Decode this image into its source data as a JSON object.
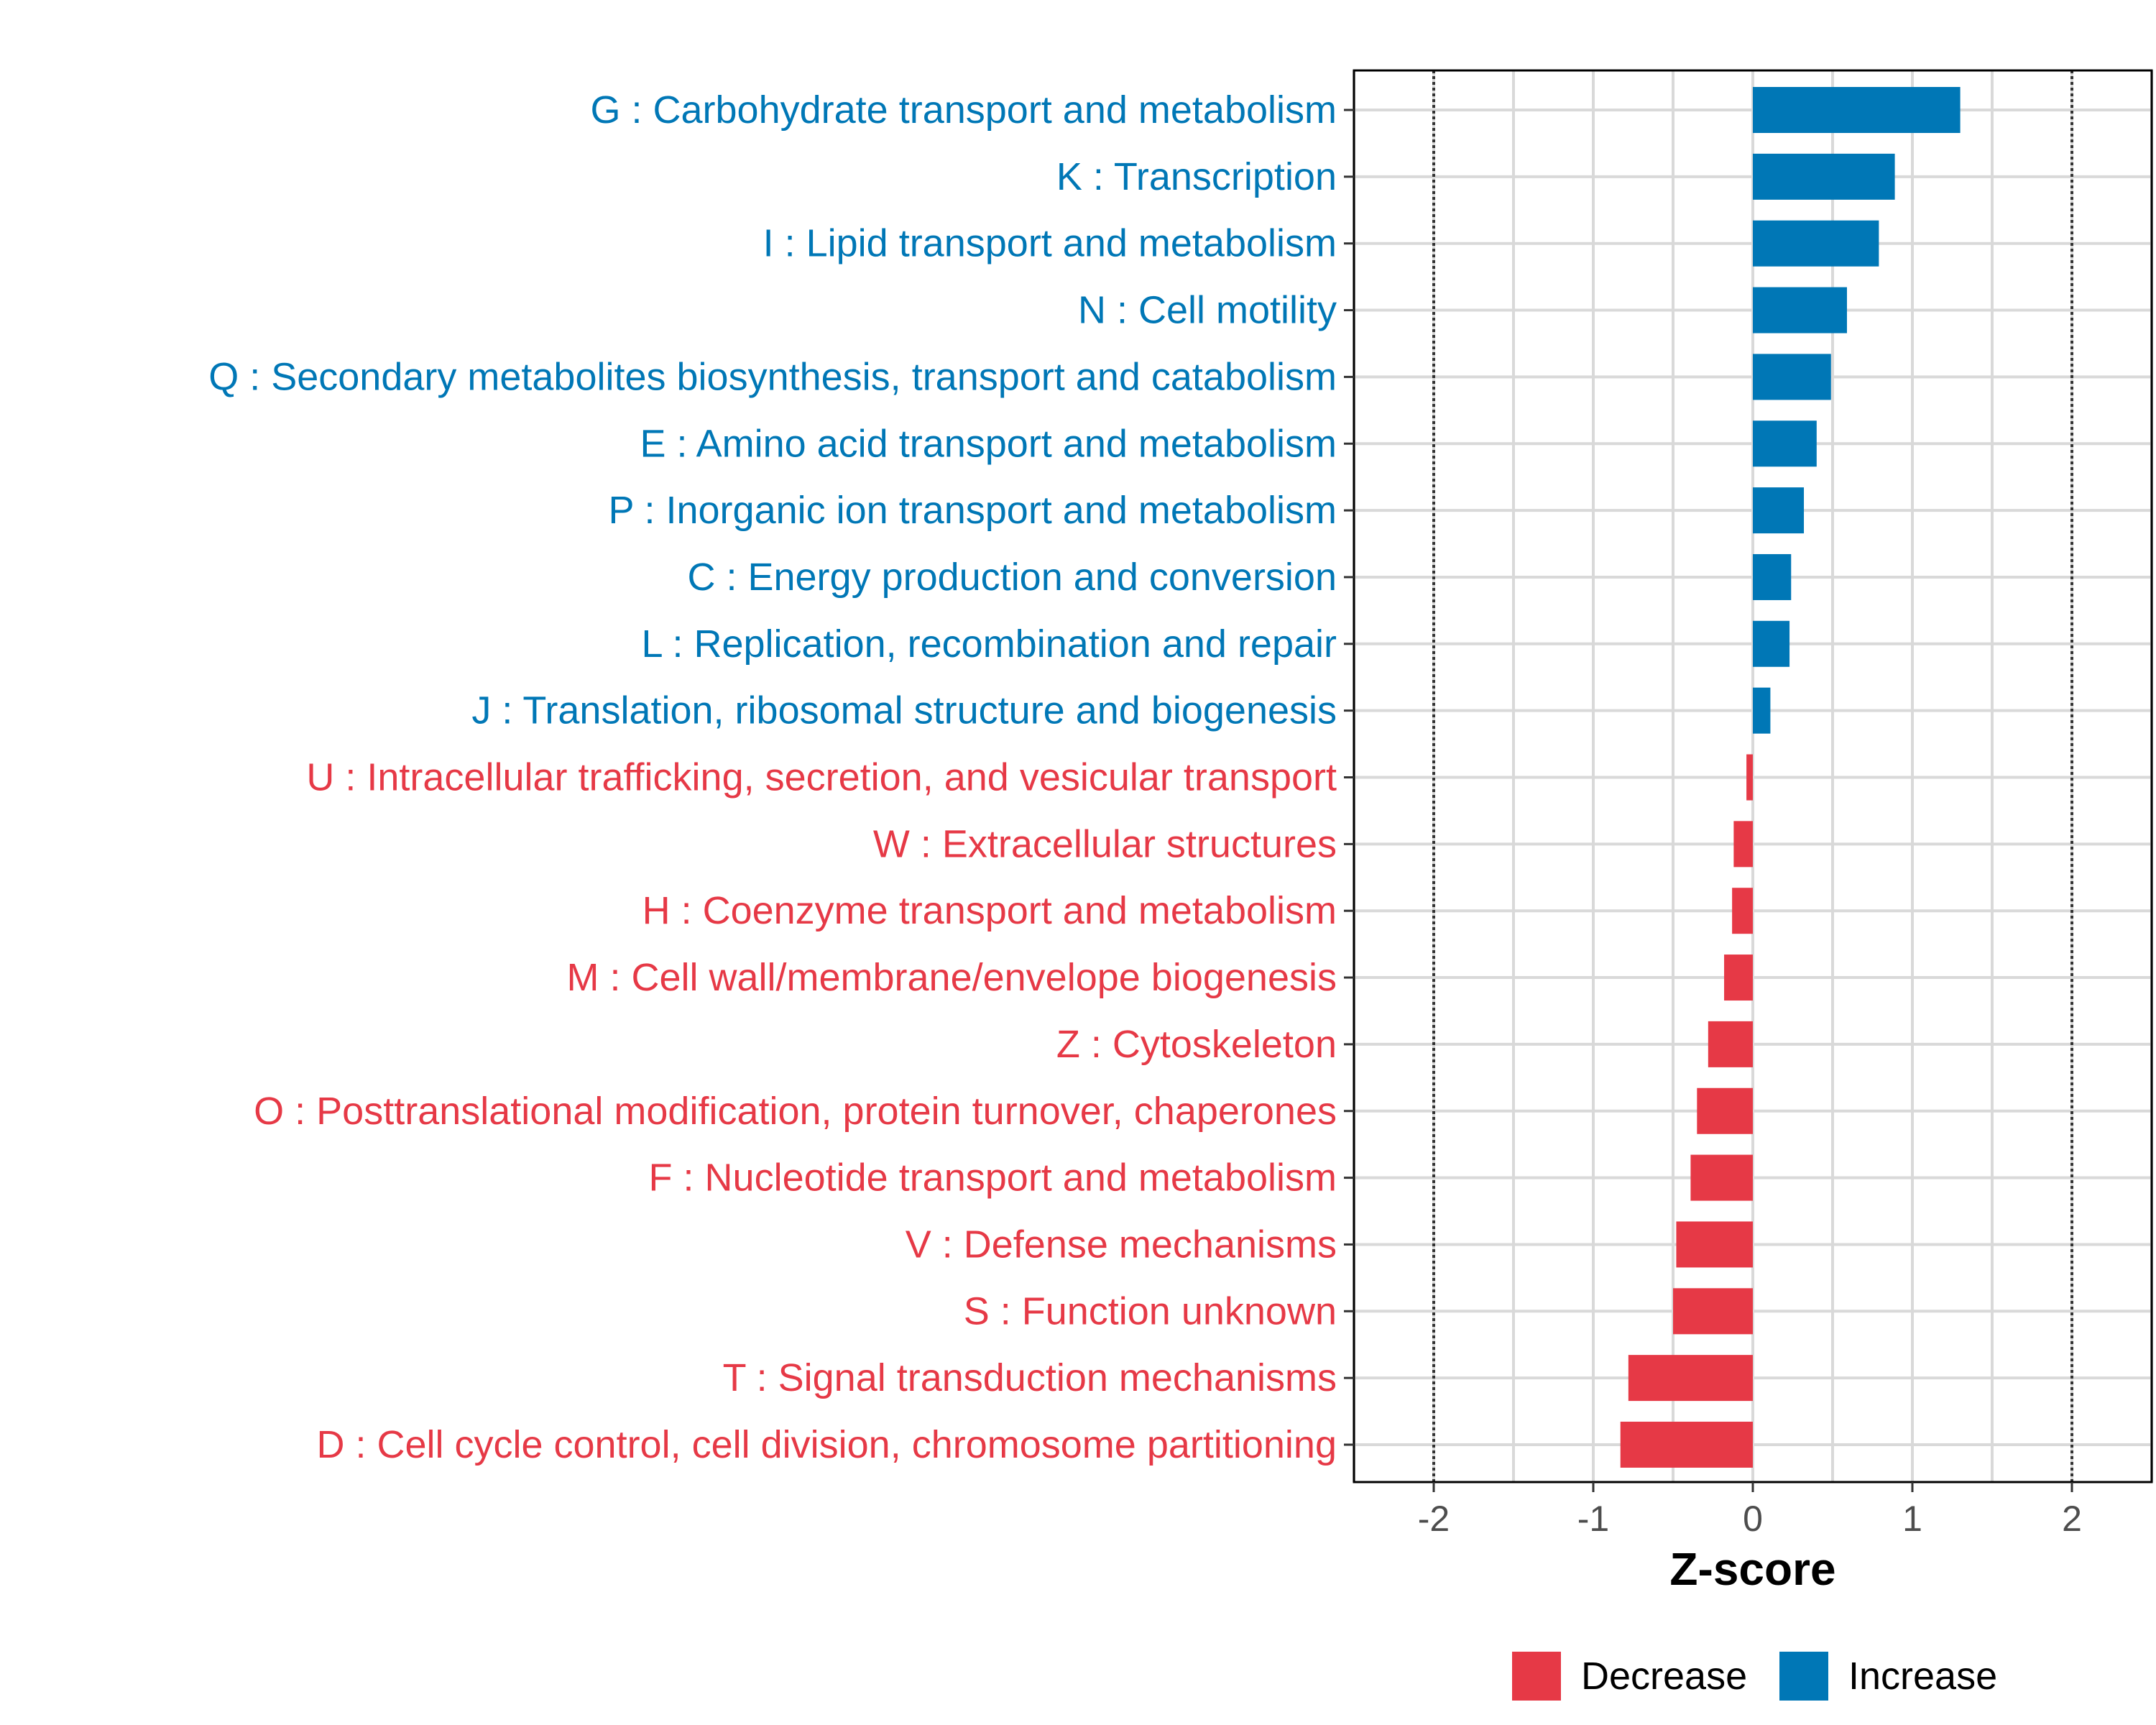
{
  "chart_data": {
    "type": "bar",
    "orientation": "horizontal",
    "title": "",
    "xlabel": "Z-score",
    "ylabel": "",
    "xlim": [
      -2.5,
      2.5
    ],
    "xticks": [
      -2,
      -1,
      0,
      1,
      2
    ],
    "xtick_labels": [
      "-2",
      "-1",
      "0",
      "1",
      "2"
    ],
    "reference_lines": [
      -2,
      2
    ],
    "grid": true,
    "colors": {
      "Decrease": "#e63946",
      "Increase": "#0077b6"
    },
    "legend": {
      "placement": "bottom",
      "entries": [
        {
          "label": "Decrease",
          "color": "#e63946"
        },
        {
          "label": "Increase",
          "color": "#0077b6"
        }
      ]
    },
    "categories": [
      {
        "label": "G : Carbohydrate transport and metabolism",
        "value": 1.3,
        "group": "Increase"
      },
      {
        "label": "K : Transcription",
        "value": 0.89,
        "group": "Increase"
      },
      {
        "label": "I : Lipid transport and metabolism",
        "value": 0.79,
        "group": "Increase"
      },
      {
        "label": "N : Cell motility",
        "value": 0.59,
        "group": "Increase"
      },
      {
        "label": "Q : Secondary metabolites biosynthesis, transport and catabolism",
        "value": 0.49,
        "group": "Increase"
      },
      {
        "label": "E : Amino acid transport and metabolism",
        "value": 0.4,
        "group": "Increase"
      },
      {
        "label": "P : Inorganic ion transport and metabolism",
        "value": 0.32,
        "group": "Increase"
      },
      {
        "label": "C : Energy production and conversion",
        "value": 0.24,
        "group": "Increase"
      },
      {
        "label": "L : Replication, recombination and repair",
        "value": 0.23,
        "group": "Increase"
      },
      {
        "label": "J : Translation, ribosomal structure and biogenesis",
        "value": 0.11,
        "group": "Increase"
      },
      {
        "label": "U : Intracellular trafficking, secretion, and vesicular transport",
        "value": -0.04,
        "group": "Decrease"
      },
      {
        "label": "W : Extracellular structures",
        "value": -0.12,
        "group": "Decrease"
      },
      {
        "label": "H : Coenzyme transport and metabolism",
        "value": -0.13,
        "group": "Decrease"
      },
      {
        "label": "M : Cell wall/membrane/envelope biogenesis",
        "value": -0.18,
        "group": "Decrease"
      },
      {
        "label": "Z : Cytoskeleton",
        "value": -0.28,
        "group": "Decrease"
      },
      {
        "label": "O : Posttranslational modification, protein turnover, chaperones",
        "value": -0.35,
        "group": "Decrease"
      },
      {
        "label": "F : Nucleotide transport and metabolism",
        "value": -0.39,
        "group": "Decrease"
      },
      {
        "label": "V : Defense mechanisms",
        "value": -0.48,
        "group": "Decrease"
      },
      {
        "label": "S : Function unknown",
        "value": -0.5,
        "group": "Decrease"
      },
      {
        "label": "T : Signal transduction mechanisms",
        "value": -0.78,
        "group": "Decrease"
      },
      {
        "label": "D : Cell cycle control, cell division, chromosome partitioning",
        "value": -0.83,
        "group": "Decrease"
      }
    ]
  }
}
